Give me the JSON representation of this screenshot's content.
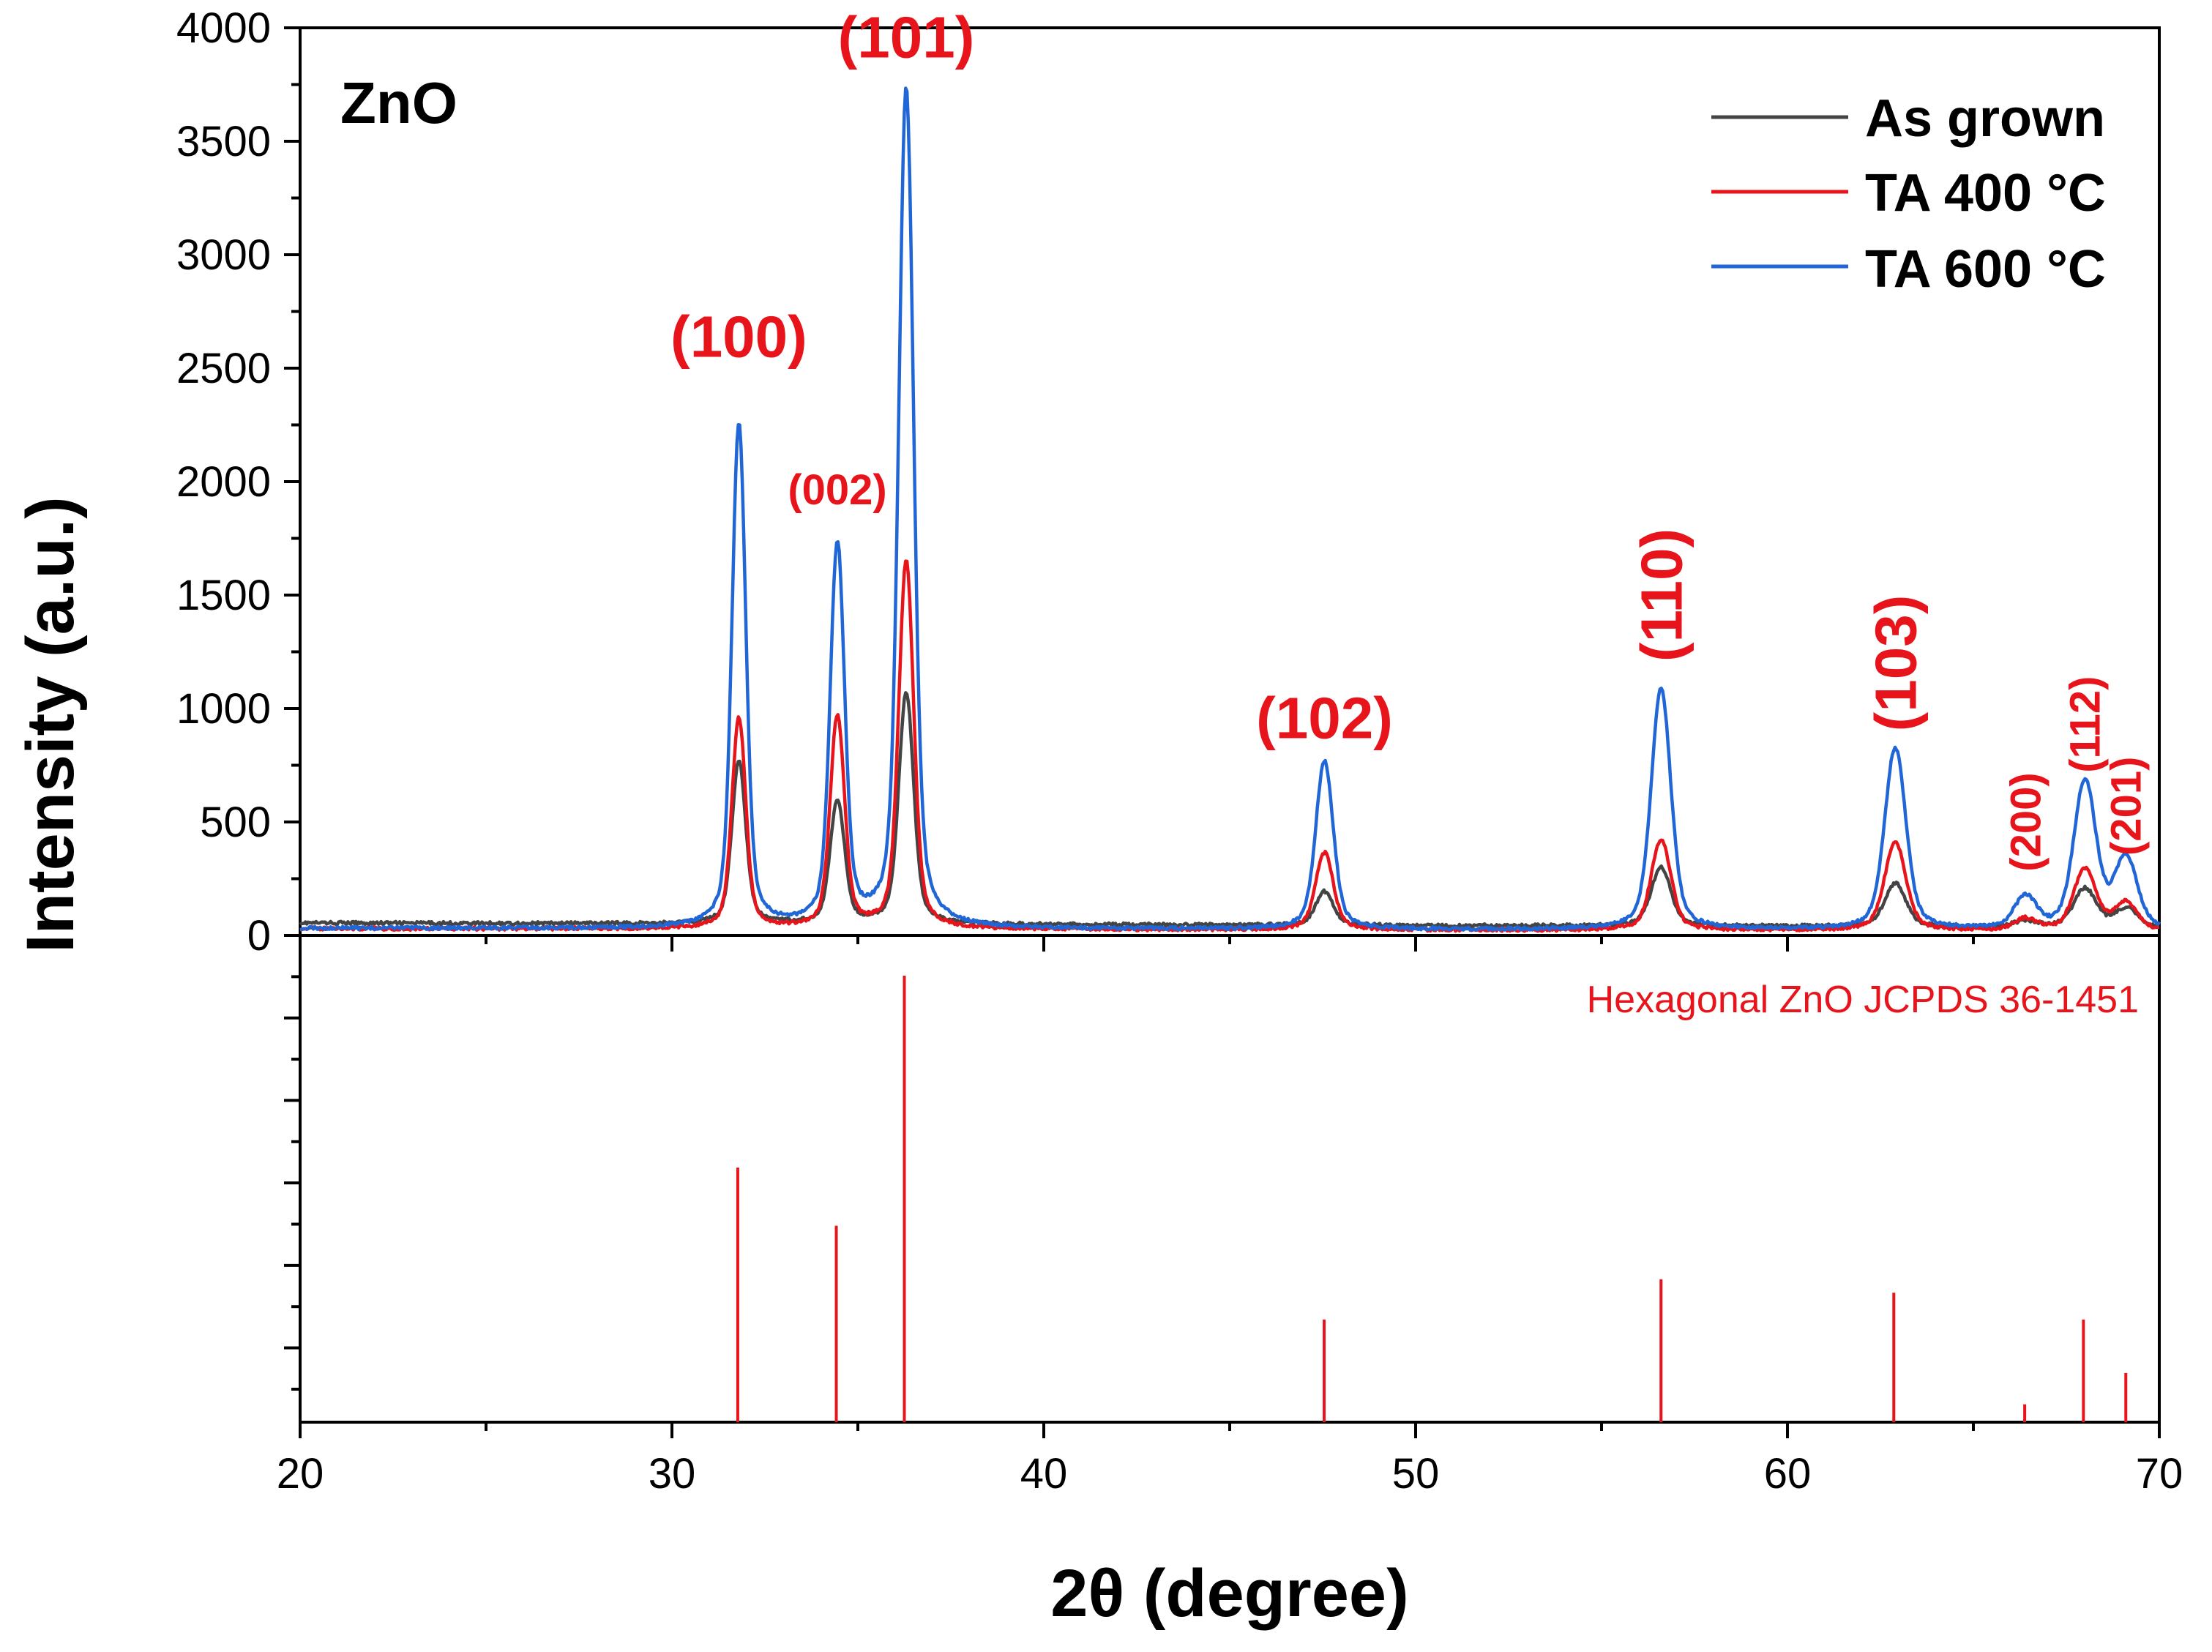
{
  "chart_data": {
    "type": "line",
    "title": "ZnO",
    "xlabel": "2θ (degree)",
    "ylabel": "Intensity (a.u.)",
    "xlim": [
      20,
      70
    ],
    "ylim": [
      0,
      4000
    ],
    "x_ticks": [
      "20",
      "30",
      "40",
      "50",
      "60",
      "70"
    ],
    "y_ticks": [
      "0",
      "500",
      "1000",
      "1500",
      "2000",
      "2500",
      "3000",
      "3500",
      "4000"
    ],
    "legend_position": "top-right",
    "series": [
      {
        "name": "As grown",
        "color": "#444444",
        "baseline": 55,
        "peaks": [
          [
            31.8,
            720
          ],
          [
            34.45,
            540
          ],
          [
            36.3,
            1020
          ],
          [
            47.55,
            150
          ],
          [
            56.6,
            260
          ],
          [
            62.9,
            190
          ],
          [
            66.4,
            25
          ],
          [
            68.0,
            170
          ],
          [
            69.1,
            80
          ]
        ]
      },
      {
        "name": "TA 400 °C",
        "color": "#e8141b",
        "baseline": 30,
        "peaks": [
          [
            31.8,
            930
          ],
          [
            34.45,
            930
          ],
          [
            36.3,
            1620
          ],
          [
            47.55,
            340
          ],
          [
            56.6,
            400
          ],
          [
            62.9,
            390
          ],
          [
            66.4,
            50
          ],
          [
            68.0,
            270
          ],
          [
            69.1,
            120
          ]
        ]
      },
      {
        "name": "TA 600 °C",
        "color": "#2166d6",
        "baseline": 32,
        "peaks": [
          [
            31.8,
            2220
          ],
          [
            34.45,
            1680
          ],
          [
            36.3,
            3700
          ],
          [
            47.55,
            740
          ],
          [
            56.6,
            1060
          ],
          [
            62.9,
            800
          ],
          [
            66.4,
            140
          ],
          [
            68.0,
            650
          ],
          [
            69.1,
            310
          ]
        ]
      }
    ],
    "annotations": [
      {
        "label": "(100)",
        "x": 31.8,
        "y": 2550,
        "rotated": false,
        "size": "large"
      },
      {
        "label": "(002)",
        "x": 34.45,
        "y": 1900,
        "rotated": false,
        "size": "medium"
      },
      {
        "label": "(101)",
        "x": 36.3,
        "y": 3870,
        "rotated": false,
        "size": "large"
      },
      {
        "label": "(102)",
        "x": 47.55,
        "y": 870,
        "rotated": false,
        "size": "large"
      },
      {
        "label": "(110)",
        "x": 56.6,
        "y": 1500,
        "rotated": true,
        "size": "large"
      },
      {
        "label": "(103)",
        "x": 62.9,
        "y": 1200,
        "rotated": true,
        "size": "large"
      },
      {
        "label": "(200)",
        "x": 66.4,
        "y": 500,
        "rotated": true,
        "size": "medium"
      },
      {
        "label": "(112)",
        "x": 68.0,
        "y": 930,
        "rotated": true,
        "size": "medium"
      },
      {
        "label": "(201)",
        "x": 69.1,
        "y": 570,
        "rotated": true,
        "size": "medium"
      }
    ],
    "reference": {
      "label": "Hexagonal ZnO JCPDS 36-1451",
      "color": "#e8141b",
      "relative_intensity_max": 100,
      "lines": [
        {
          "x": 31.77,
          "intensity": 57
        },
        {
          "x": 34.42,
          "intensity": 44
        },
        {
          "x": 36.25,
          "intensity": 100
        },
        {
          "x": 47.54,
          "intensity": 23
        },
        {
          "x": 56.6,
          "intensity": 32
        },
        {
          "x": 62.86,
          "intensity": 29
        },
        {
          "x": 66.38,
          "intensity": 4
        },
        {
          "x": 67.96,
          "intensity": 23
        },
        {
          "x": 69.1,
          "intensity": 11
        }
      ]
    }
  }
}
